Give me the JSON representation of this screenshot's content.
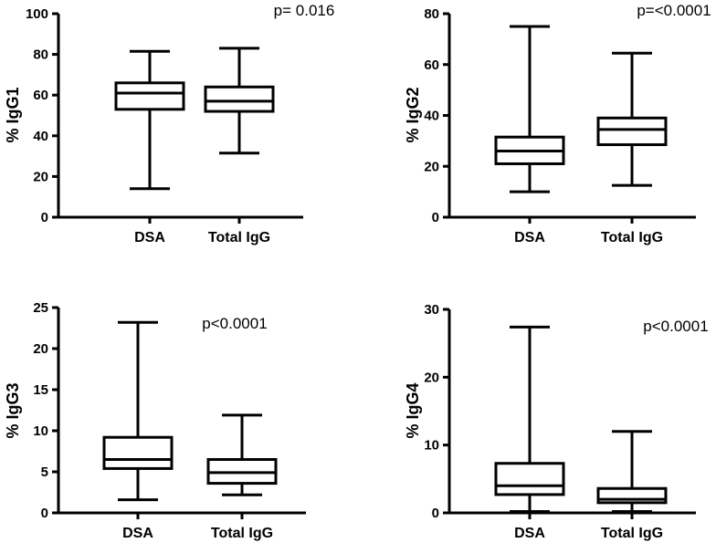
{
  "chart_data": [
    {
      "type": "box",
      "ylabel": "% IgG1",
      "annotation": "p= 0.016",
      "ylim": [
        0,
        100
      ],
      "yticks": [
        "0",
        "20",
        "40",
        "60",
        "80",
        "100"
      ],
      "categories": [
        "DSA",
        "Total IgG"
      ],
      "boxes": [
        {
          "min": 14,
          "q1": 53,
          "median": 61,
          "q3": 66,
          "max": 81.5
        },
        {
          "min": 31.5,
          "q1": 52,
          "median": 57,
          "q3": 64,
          "max": 83
        }
      ]
    },
    {
      "type": "box",
      "ylabel": "% IgG2",
      "annotation": "p=<0.0001",
      "ylim": [
        0,
        80
      ],
      "yticks": [
        "0",
        "20",
        "40",
        "60",
        "80"
      ],
      "categories": [
        "DSA",
        "Total IgG"
      ],
      "boxes": [
        {
          "min": 10,
          "q1": 21,
          "median": 26,
          "q3": 31.5,
          "max": 75
        },
        {
          "min": 12.5,
          "q1": 28.5,
          "median": 34.5,
          "q3": 39,
          "max": 64.5
        }
      ]
    },
    {
      "type": "box",
      "ylabel": "% IgG3",
      "annotation": "p<0.0001",
      "ylim": [
        0,
        25
      ],
      "yticks": [
        "0",
        "5",
        "10",
        "15",
        "20",
        "25"
      ],
      "categories": [
        "DSA",
        "Total IgG"
      ],
      "boxes": [
        {
          "min": 1.6,
          "q1": 5.4,
          "median": 6.5,
          "q3": 9.2,
          "max": 23.2
        },
        {
          "min": 2.2,
          "q1": 3.6,
          "median": 4.9,
          "q3": 6.5,
          "max": 11.9
        }
      ]
    },
    {
      "type": "box",
      "ylabel": "% IgG4",
      "annotation": "p<0.0001",
      "ylim": [
        0,
        30
      ],
      "yticks": [
        "0",
        "10",
        "20",
        "30"
      ],
      "categories": [
        "DSA",
        "Total IgG"
      ],
      "boxes": [
        {
          "min": 0.2,
          "q1": 2.7,
          "median": 4,
          "q3": 7.3,
          "max": 27.4
        },
        {
          "min": 0.2,
          "q1": 1.5,
          "median": 2,
          "q3": 3.6,
          "max": 12
        }
      ]
    }
  ]
}
